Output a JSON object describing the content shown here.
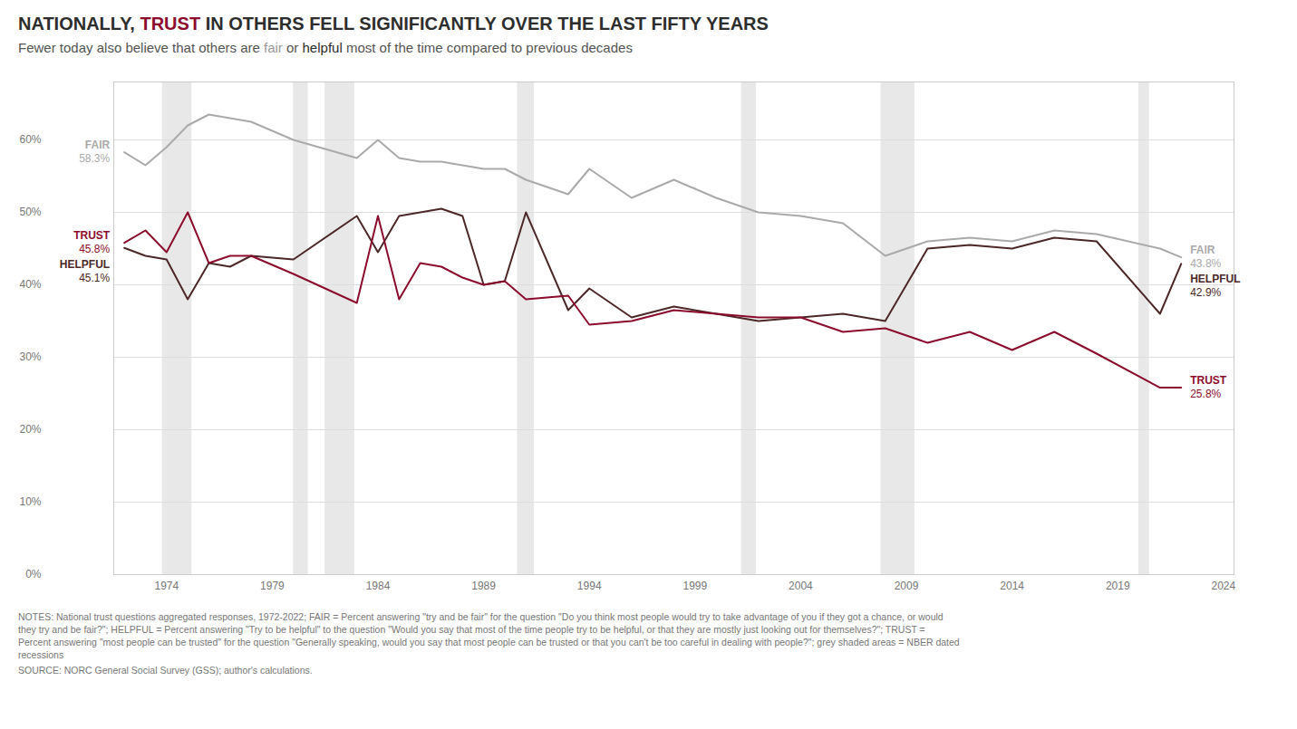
{
  "chart_data": {
    "type": "line",
    "title": [
      {
        "text": "NATIONALLY, ",
        "color": "#2d2d2d"
      },
      {
        "text": "TRUST",
        "color": "#8b0c2c"
      },
      {
        "text": " IN OTHERS FELL SIGNIFICANTLY OVER THE LAST FIFTY YEARS",
        "color": "#2d2d2d"
      }
    ],
    "subtitle": [
      {
        "text": "Fewer today also believe that others are ",
        "color": "#555555"
      },
      {
        "text": "fair",
        "color": "#999999"
      },
      {
        "text": " or ",
        "color": "#555555"
      },
      {
        "text": "helpful",
        "color": "#2d2d2d"
      },
      {
        "text": " most of the time compared to previous decades",
        "color": "#555555"
      }
    ],
    "x": [
      1972,
      1973,
      1974,
      1975,
      1976,
      1977,
      1978,
      1980,
      1983,
      1984,
      1985,
      1986,
      1987,
      1988,
      1989,
      1990,
      1991,
      1993,
      1994,
      1996,
      1998,
      2000,
      2002,
      2004,
      2006,
      2008,
      2010,
      2012,
      2014,
      2016,
      2018,
      2021,
      2022
    ],
    "series": [
      {
        "name": "FAIR",
        "color": "#aaaaaa",
        "values": [
          58.3,
          56.5,
          59.0,
          62.0,
          63.5,
          63.0,
          62.5,
          60.0,
          57.5,
          60.0,
          57.5,
          57.0,
          57.0,
          56.5,
          56.0,
          56.0,
          54.5,
          52.5,
          56.0,
          52.0,
          54.5,
          52.0,
          50.0,
          49.5,
          48.5,
          44.0,
          46.0,
          46.5,
          46.0,
          47.5,
          47.0,
          45.0,
          43.8
        ],
        "value_labels": [
          "58.3%",
          null,
          null,
          null,
          null,
          null,
          null,
          null,
          null,
          null,
          null,
          null,
          null,
          null,
          null,
          null,
          null,
          null,
          null,
          null,
          null,
          null,
          null,
          null,
          null,
          null,
          null,
          null,
          null,
          null,
          null,
          null,
          "43.8%"
        ]
      },
      {
        "name": "HELPFUL",
        "color": "#4d2828",
        "values": [
          45.1,
          44.0,
          43.5,
          38.0,
          43.0,
          42.5,
          44.0,
          43.5,
          49.5,
          44.5,
          49.5,
          50.0,
          50.5,
          49.5,
          40.0,
          40.5,
          50.0,
          36.5,
          39.5,
          35.5,
          37.0,
          36.0,
          35.0,
          35.5,
          36.0,
          35.0,
          45.0,
          45.5,
          45.0,
          46.5,
          46.0,
          36.0,
          42.9
        ],
        "value_labels": [
          "45.1%",
          null,
          null,
          null,
          null,
          null,
          null,
          null,
          null,
          null,
          null,
          null,
          null,
          null,
          null,
          null,
          null,
          null,
          null,
          null,
          null,
          null,
          null,
          null,
          null,
          null,
          null,
          null,
          null,
          null,
          null,
          null,
          "42.9%"
        ]
      },
      {
        "name": "TRUST",
        "color": "#8b0c2c",
        "values": [
          45.8,
          47.5,
          44.5,
          50.0,
          43.0,
          44.0,
          44.0,
          41.5,
          37.5,
          49.5,
          38.0,
          43.0,
          42.5,
          41.0,
          40.0,
          40.5,
          38.0,
          38.5,
          34.5,
          35.0,
          36.5,
          36.0,
          35.5,
          35.5,
          33.5,
          34.0,
          32.0,
          33.5,
          31.0,
          33.5,
          30.5,
          25.8,
          25.8
        ],
        "value_labels": [
          "45.8%",
          null,
          null,
          null,
          null,
          null,
          null,
          null,
          null,
          null,
          null,
          null,
          null,
          null,
          null,
          null,
          null,
          null,
          null,
          null,
          null,
          null,
          null,
          null,
          null,
          null,
          null,
          null,
          null,
          null,
          null,
          null,
          "25.8%"
        ]
      }
    ],
    "recession_bands": [
      [
        1973.8,
        1975.2
      ],
      [
        1980.0,
        1980.7
      ],
      [
        1981.5,
        1982.9
      ],
      [
        1990.6,
        1991.4
      ],
      [
        2001.2,
        2001.9
      ],
      [
        2007.8,
        2009.4
      ],
      [
        2020.0,
        2020.5
      ]
    ],
    "recession_color": "#e8e8e8",
    "xlim": [
      1971.5,
      2024.5
    ],
    "ylim": [
      0,
      68
    ],
    "xticks": [
      1974,
      1979,
      1984,
      1989,
      1994,
      1999,
      2004,
      2009,
      2014,
      2019,
      2024
    ],
    "yticks": [
      {
        "value": 0,
        "label": "0%"
      },
      {
        "value": 10,
        "label": "10%"
      },
      {
        "value": 20,
        "label": "20%"
      },
      {
        "value": 30,
        "label": "30%"
      },
      {
        "value": 40,
        "label": "40%"
      },
      {
        "value": 50,
        "label": "50%"
      },
      {
        "value": 60,
        "label": "60%"
      }
    ],
    "grid": "y",
    "notes": [
      "NOTES: National trust questions aggregated responses, 1972-2022; FAIR = Percent answering \"try and be fair\" for the question \"Do you think most people would try to take advantage of you if they got a chance, or would",
      "they try and be fair?\"; HELPFUL = Percent answering \"Try to be helpful\" to the question \"Would you say that most of the time people try to be helpful, or that they are mostly just looking out for themselves?\"; TRUST =",
      "Percent answering \"most people can be trusted\" for the question \"Generally speaking, would you say that most people can be trusted or that you can't be too careful in dealing with people?\"; grey shaded areas = NBER dated",
      "recessions"
    ],
    "source": "SOURCE: NORC General Social Survey (GSS); author's calculations."
  }
}
